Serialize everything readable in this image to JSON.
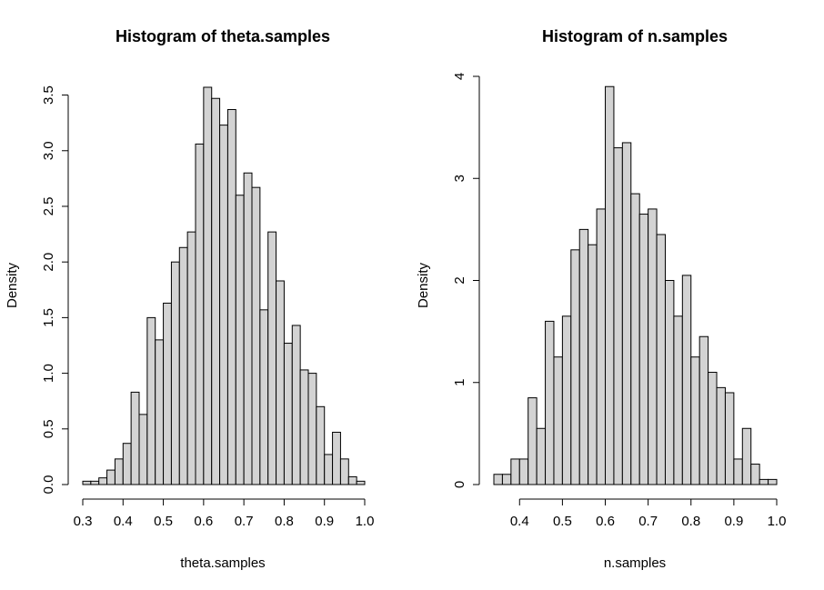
{
  "chart_data": [
    {
      "type": "bar",
      "title": "Histogram of theta.samples",
      "xlabel": "theta.samples",
      "ylabel": "Density",
      "bin_start": 0.3,
      "bin_width": 0.02,
      "values": [
        0.03,
        0.03,
        0.06,
        0.13,
        0.23,
        0.37,
        0.83,
        0.63,
        1.5,
        1.3,
        1.63,
        2.0,
        2.13,
        2.27,
        3.06,
        3.57,
        3.47,
        3.23,
        3.37,
        2.6,
        2.8,
        2.67,
        1.57,
        2.27,
        1.83,
        1.27,
        1.43,
        1.03,
        1.0,
        0.7,
        0.27,
        0.47,
        0.23,
        0.07,
        0.03
      ],
      "xlim": [
        0.3,
        1.0
      ],
      "ylim": [
        0,
        3.57
      ],
      "xticks": [
        "0.3",
        "0.4",
        "0.5",
        "0.6",
        "0.7",
        "0.8",
        "0.9",
        "1.0"
      ],
      "xtick_values": [
        0.3,
        0.4,
        0.5,
        0.6,
        0.7,
        0.8,
        0.9,
        1.0
      ],
      "yticks": [
        "0.0",
        "0.5",
        "1.0",
        "1.5",
        "2.0",
        "2.5",
        "3.0",
        "3.5"
      ],
      "ytick_values": [
        0,
        0.5,
        1.0,
        1.5,
        2.0,
        2.5,
        3.0,
        3.5
      ],
      "grid": false,
      "bar_fill": "#d3d3d3",
      "bar_stroke": "#000000"
    },
    {
      "type": "bar",
      "title": "Histogram of n.samples",
      "xlabel": "n.samples",
      "ylabel": "Density",
      "bin_start": 0.34,
      "bin_width": 0.02,
      "values": [
        0.1,
        0.1,
        0.25,
        0.25,
        0.85,
        0.55,
        1.6,
        1.25,
        1.65,
        2.3,
        2.5,
        2.35,
        2.7,
        3.9,
        3.3,
        3.35,
        2.85,
        2.65,
        2.7,
        2.45,
        2.0,
        1.65,
        2.05,
        1.25,
        1.45,
        1.1,
        0.95,
        0.9,
        0.25,
        0.55,
        0.2,
        0.05,
        0.05
      ],
      "xlim": [
        0.34,
        1.0
      ],
      "ylim": [
        0,
        4.0
      ],
      "xticks": [
        "0.4",
        "0.5",
        "0.6",
        "0.7",
        "0.8",
        "0.9",
        "1.0"
      ],
      "xtick_values": [
        0.4,
        0.5,
        0.6,
        0.7,
        0.8,
        0.9,
        1.0
      ],
      "yticks": [
        "0",
        "1",
        "2",
        "3",
        "4"
      ],
      "ytick_values": [
        0,
        1,
        2,
        3,
        4
      ],
      "grid": false,
      "bar_fill": "#d3d3d3",
      "bar_stroke": "#000000"
    }
  ]
}
